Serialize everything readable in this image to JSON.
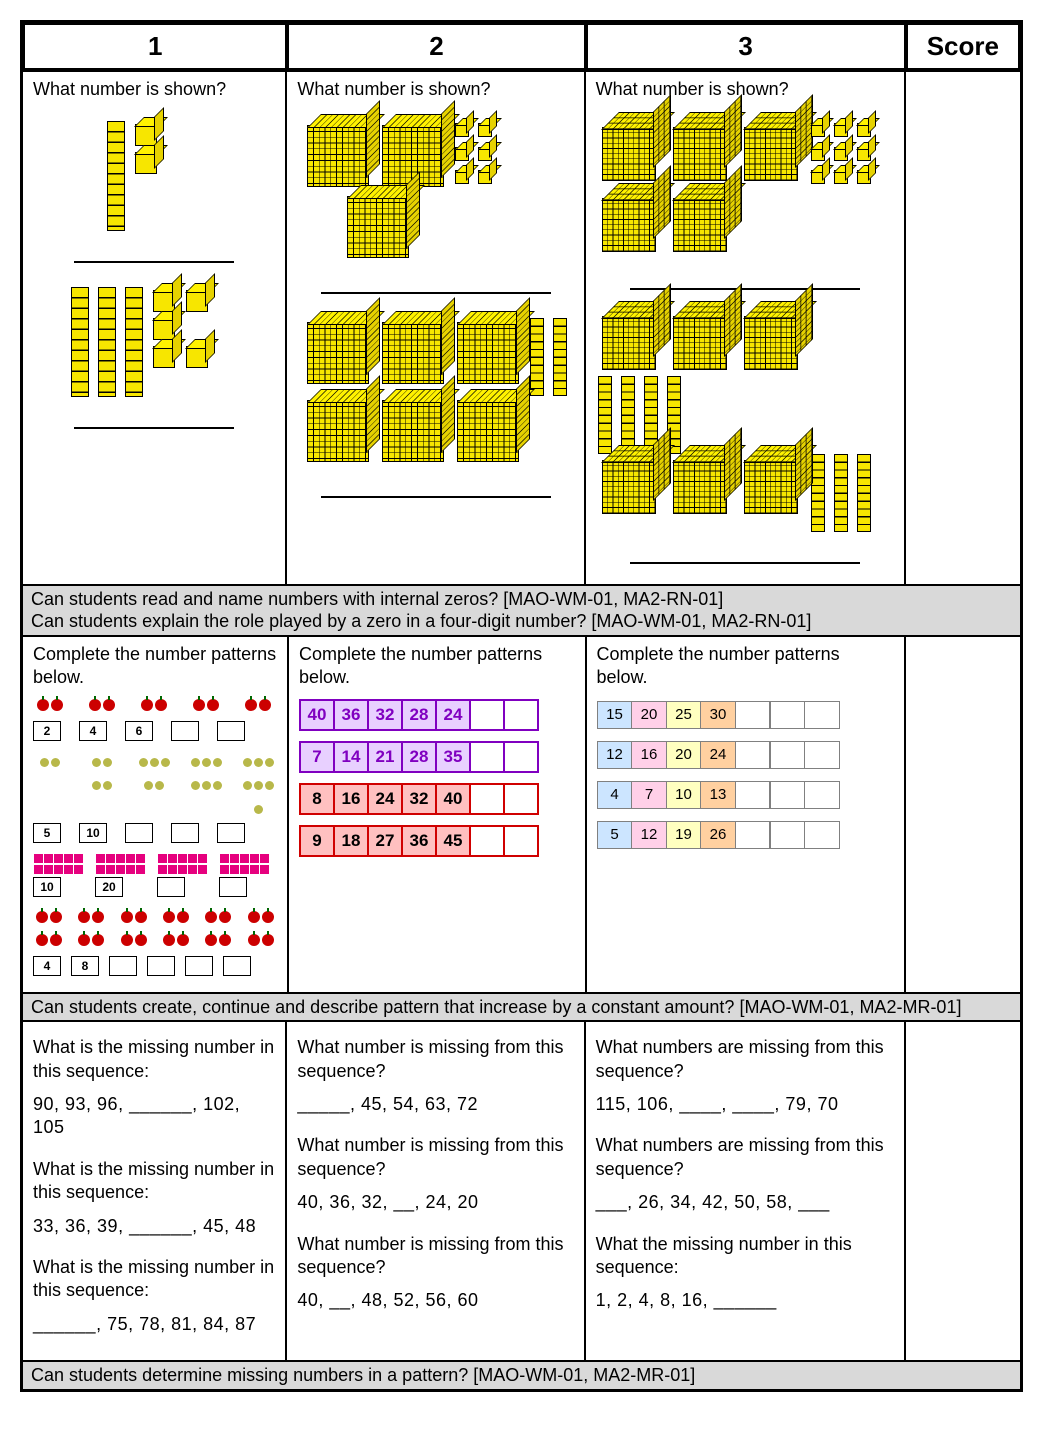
{
  "header": {
    "c1": "1",
    "c2": "2",
    "c3": "3",
    "score": "Score"
  },
  "row1": {
    "prompt": "What number is shown?",
    "c1a": {
      "rods": 1,
      "units": 2
    },
    "c1b": {
      "rods": 3,
      "units": 5
    },
    "c2a": {
      "flats": 3,
      "units": 6
    },
    "c2b": {
      "flats": 6,
      "rods": 2
    },
    "c3a": {
      "thousands": 5,
      "units": 9
    },
    "c3b": {
      "thousands": 6,
      "rods": 7
    }
  },
  "band1a": "Can students read and name numbers with internal zeros? [MAO-WM-01, MA2-RN-01]",
  "band1b": "Can students explain the role played by a zero in a four-digit number? [MAO-WM-01, MA2-RN-01]",
  "row2": {
    "prompt": "Complete the number patterns below.",
    "c1": {
      "r1": {
        "vals": [
          "2",
          "4",
          "6",
          "",
          ""
        ],
        "icon": "apple",
        "per": 2
      },
      "r2": {
        "vals": [
          "5",
          "10",
          "",
          "",
          ""
        ],
        "icon": "olive",
        "pers": [
          2,
          4,
          5,
          6,
          7
        ]
      },
      "r3": {
        "vals": [
          "10",
          "20",
          "",
          ""
        ],
        "icon": "pink",
        "pers": [
          10,
          12,
          14,
          16
        ]
      },
      "r4": {
        "vals": [
          "4",
          "8",
          "",
          "",
          "",
          ""
        ],
        "icon": "apple",
        "pers": [
          4,
          4,
          4,
          4,
          4,
          4
        ]
      }
    },
    "c2": [
      {
        "color": "purple",
        "vals": [
          "40",
          "36",
          "32",
          "28",
          "24",
          "",
          ""
        ]
      },
      {
        "color": "purple",
        "vals": [
          "7",
          "14",
          "21",
          "28",
          "35",
          "",
          ""
        ]
      },
      {
        "color": "red",
        "vals": [
          "8",
          "16",
          "24",
          "32",
          "40",
          "",
          ""
        ]
      },
      {
        "color": "red",
        "vals": [
          "9",
          "18",
          "27",
          "36",
          "45",
          "",
          ""
        ]
      }
    ],
    "c3": [
      {
        "vals": [
          "15",
          "20",
          "25",
          "30",
          "",
          "",
          ""
        ]
      },
      {
        "vals": [
          "12",
          "16",
          "20",
          "24",
          "",
          "",
          ""
        ]
      },
      {
        "vals": [
          "4",
          "7",
          "10",
          "13",
          "",
          "",
          ""
        ]
      },
      {
        "vals": [
          "5",
          "12",
          "19",
          "26",
          "",
          "",
          ""
        ]
      }
    ]
  },
  "band2": "Can students create, continue and describe pattern that increase by a constant amount? [MAO-WM-01, MA2-MR-01]",
  "row3": {
    "c1": {
      "q": "What is the missing number in this sequence:",
      "s1": "90,   93,   96, ______, 102,  105",
      "s2": "33,  36,  39, ______,  45,  48",
      "s3": "______,  75,  78,  81,  84,  87"
    },
    "c2": {
      "q": "What number is missing from this sequence?",
      "s1": "_____,    45,    54,    63,    72",
      "s2": "40,    36,    32,    __,    24,    20",
      "s3": "40,   __,    48,    52,    56,    60"
    },
    "c3": {
      "q1": "What numbers are missing from this sequence?",
      "s1": "115, 106,  ____,  ____, 79, 70",
      "q2": "What numbers are missing from this sequence?",
      "s2": "___, 26, 34, 42, 50, 58,  ___",
      "q3": "What the missing number in this sequence:",
      "s3": "1,   2,   4,   8,   16,  ______"
    }
  },
  "band3": "Can students determine missing numbers in a pattern? [MAO-WM-01, MA2-MR-01]",
  "colors": {
    "block_yellow": "#f7e600",
    "purple": "#8000c0",
    "red": "#d00000",
    "c3_colors": [
      "#cce5ff",
      "#ffd0e8",
      "#ffffc0",
      "#ffd0a0"
    ]
  }
}
